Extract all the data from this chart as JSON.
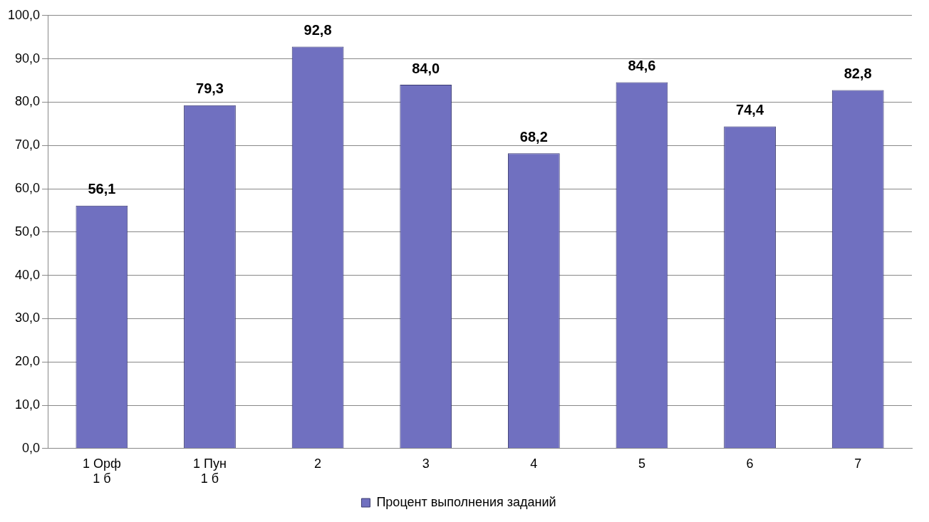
{
  "chart_data": {
    "type": "bar",
    "categories": [
      "1 Орф\n1 б",
      "1 Пун\n1 б",
      "2",
      "3",
      "4",
      "5",
      "6",
      "7"
    ],
    "series": [
      {
        "name": "Процент выполнения заданий",
        "color": "#7070c0",
        "values": [
          56.1,
          79.3,
          92.8,
          84.0,
          68.2,
          84.6,
          74.4,
          82.8
        ],
        "value_labels": [
          "56,1",
          "79,3",
          "92,8",
          "84,0",
          "68,2",
          "84,6",
          "74,4",
          "82,8"
        ]
      }
    ],
    "ylim": [
      0,
      100
    ],
    "yticks": [
      {
        "value": 0,
        "label": "0,0"
      },
      {
        "value": 10,
        "label": "10,0"
      },
      {
        "value": 20,
        "label": "20,0"
      },
      {
        "value": 30,
        "label": "30,0"
      },
      {
        "value": 40,
        "label": "40,0"
      },
      {
        "value": 50,
        "label": "50,0"
      },
      {
        "value": 60,
        "label": "60,0"
      },
      {
        "value": 70,
        "label": "70,0"
      },
      {
        "value": 80,
        "label": "80,0"
      },
      {
        "value": 90,
        "label": "90,0"
      },
      {
        "value": 100,
        "label": "100,0"
      }
    ],
    "grid": "y",
    "legend": "bottom"
  }
}
